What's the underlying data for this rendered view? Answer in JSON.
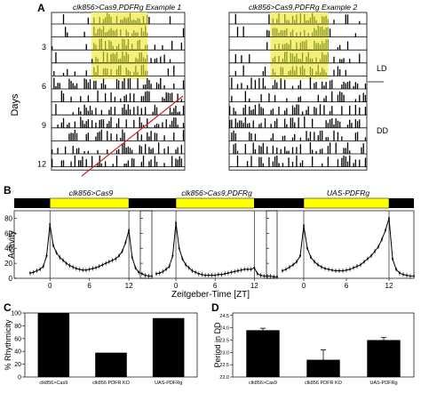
{
  "figure": {
    "panel_labels": [
      "A",
      "B",
      "C",
      "D"
    ]
  },
  "panelA": {
    "y_axis_label": "Days",
    "day_ticks": [
      "3",
      "6",
      "9",
      "12"
    ],
    "ld_label": "LD",
    "dd_label": "DD",
    "actograms": [
      {
        "title": "clk856>Cas9,PDFRg Example 1",
        "days": 12
      },
      {
        "title": "clk856>Cas9,PDFRg Example 2",
        "days": 12
      }
    ],
    "light_phase_color": "#f4f07a",
    "activity_color_light": "#8f9a22",
    "activity_color_dark": "#000000",
    "regression_line_color": "#d42020"
  },
  "panelB": {
    "y_label": "Activity",
    "x_label": "Zeitgeber-Time [ZT]",
    "light_bar_color": "#ffff00",
    "dark_bar_color": "#000000",
    "chart_data": [
      {
        "type": "line",
        "title": "clk856>Cas9",
        "x": [
          0,
          0.5,
          1,
          1.5,
          2,
          2.5,
          3,
          3.5,
          4,
          4.5,
          5,
          5.5,
          6,
          6.5,
          7,
          7.5,
          8,
          8.5,
          9,
          9.5,
          10,
          10.5,
          11,
          11.5,
          12,
          12.5,
          13,
          13.5,
          14,
          14.5,
          15,
          15.5,
          16,
          16.5,
          17,
          17.5,
          18,
          18.5,
          19,
          19.5,
          20,
          20.5,
          21,
          21.5,
          22,
          22.5,
          23,
          23.5
        ],
        "values": [
          72,
          44,
          34,
          28,
          24,
          20,
          17,
          15,
          13,
          12,
          11,
          11,
          12,
          13,
          14,
          16,
          18,
          20,
          22,
          24,
          26,
          30,
          36,
          48,
          64,
          28,
          14,
          8,
          6,
          4,
          3,
          3,
          2,
          2,
          2,
          2,
          2,
          3,
          3,
          4,
          5,
          6,
          7,
          8,
          10,
          12,
          16,
          30
        ],
        "xticks": [
          "0",
          "6",
          "12"
        ],
        "yticks": [
          "0",
          "20",
          "40",
          "60",
          "80"
        ],
        "ylim": [
          0,
          90
        ]
      },
      {
        "type": "line",
        "title": "clk856>Cas9,PDFRg",
        "x": [
          0,
          0.5,
          1,
          1.5,
          2,
          2.5,
          3,
          3.5,
          4,
          4.5,
          5,
          5.5,
          6,
          6.5,
          7,
          7.5,
          8,
          8.5,
          9,
          9.5,
          10,
          10.5,
          11,
          11.5,
          12,
          12.5,
          13,
          13.5,
          14,
          14.5,
          15,
          15.5,
          16,
          16.5,
          17,
          17.5,
          18,
          18.5,
          19,
          19.5,
          20,
          20.5,
          21,
          21.5,
          22,
          22.5,
          23,
          23.5
        ],
        "values": [
          74,
          40,
          26,
          18,
          14,
          10,
          8,
          6,
          5,
          4,
          4,
          4,
          4,
          5,
          5,
          6,
          7,
          8,
          9,
          10,
          11,
          12,
          12,
          12,
          14,
          6,
          4,
          3,
          3,
          3,
          2,
          2,
          2,
          2,
          2,
          2,
          2,
          2,
          3,
          3,
          4,
          5,
          6,
          7,
          9,
          12,
          16,
          30
        ],
        "xticks": [
          "0",
          "6",
          "12"
        ],
        "yticks": [
          "0",
          "20",
          "40",
          "60",
          "80"
        ],
        "ylim": [
          0,
          90
        ]
      },
      {
        "type": "line",
        "title": "UAS-PDFRg",
        "x": [
          0,
          0.5,
          1,
          1.5,
          2,
          2.5,
          3,
          3.5,
          4,
          4.5,
          5,
          5.5,
          6,
          6.5,
          7,
          7.5,
          8,
          8.5,
          9,
          9.5,
          10,
          10.5,
          11,
          11.5,
          12,
          12.5,
          13,
          13.5,
          14,
          14.5,
          15,
          15.5,
          16,
          16.5,
          17,
          17.5,
          18,
          18.5,
          19,
          19.5,
          20,
          20.5,
          21,
          21.5,
          22,
          22.5,
          23,
          23.5
        ],
        "values": [
          70,
          40,
          28,
          22,
          18,
          15,
          13,
          12,
          11,
          10,
          10,
          10,
          11,
          12,
          14,
          16,
          18,
          22,
          26,
          30,
          36,
          42,
          52,
          64,
          80,
          26,
          12,
          7,
          5,
          4,
          3,
          3,
          2,
          2,
          2,
          2,
          3,
          3,
          4,
          5,
          6,
          8,
          10,
          12,
          15,
          18,
          22,
          30
        ],
        "xticks": [
          "0",
          "6",
          "12"
        ],
        "yticks": [
          "0",
          "20",
          "40",
          "60",
          "80"
        ],
        "ylim": [
          0,
          90
        ]
      }
    ]
  },
  "panelC": {
    "chart_data": {
      "type": "bar",
      "categories": [
        "clk856>Cas9",
        "clk856 PDFR KO",
        "UAS-PDFRg"
      ],
      "values": [
        100,
        38,
        92
      ],
      "ylabel": "% Rhythmicity",
      "yticks": [
        "0",
        "20",
        "40",
        "60",
        "80",
        "100"
      ],
      "ylim": [
        0,
        100
      ]
    }
  },
  "panelD": {
    "chart_data": {
      "type": "bar",
      "categories": [
        "clk856>Cas9",
        "clk856 PDFR KO",
        "UAS-PDFRg"
      ],
      "values": [
        23.9,
        22.7,
        23.5
      ],
      "errors": [
        0.08,
        0.4,
        0.1
      ],
      "ylabel": "Period in DD",
      "yticks": [
        "22.0",
        "22.5",
        "23.0",
        "23.5",
        "24.0",
        "24.5"
      ],
      "ylim": [
        22.0,
        24.6
      ]
    }
  }
}
